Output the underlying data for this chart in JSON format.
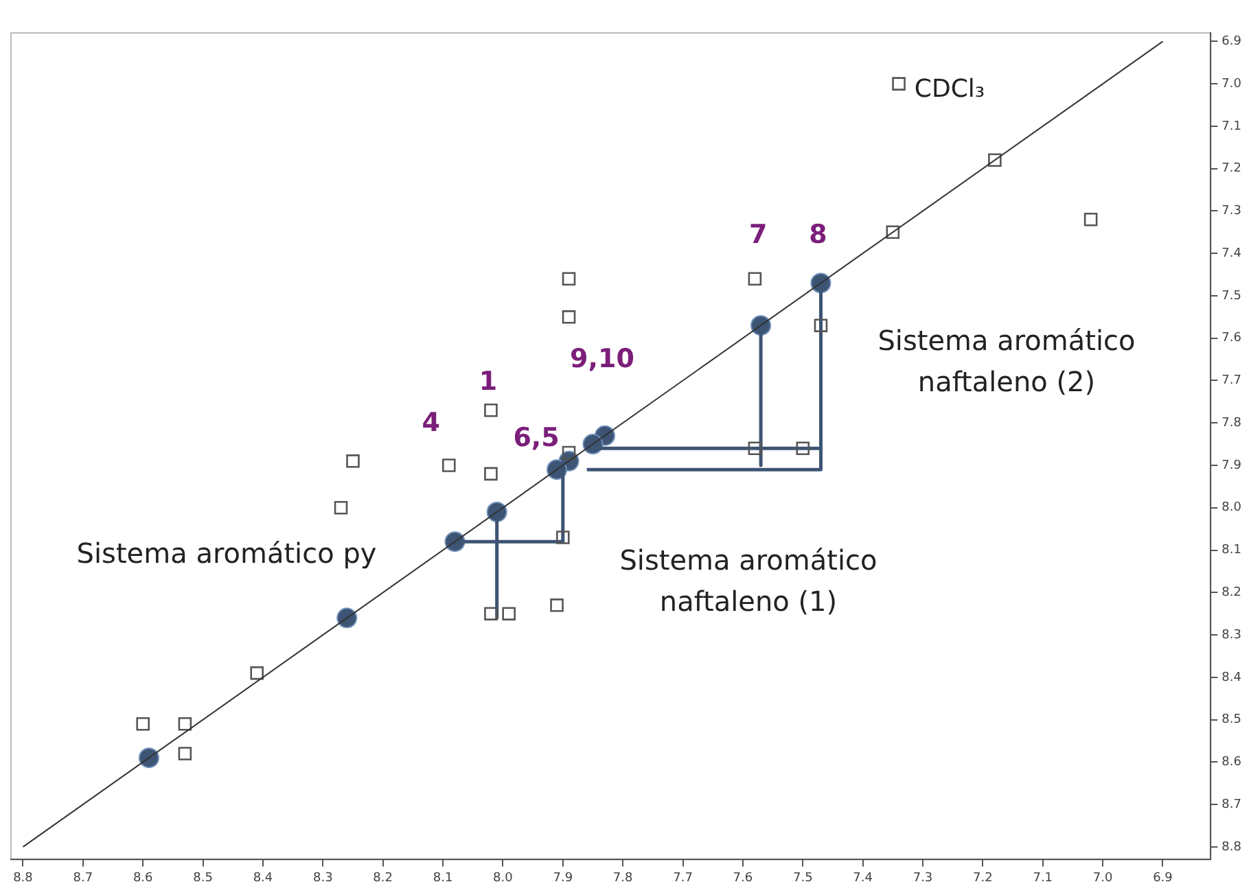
{
  "chart_data": {
    "type": "scatter",
    "xlim": [
      8.82,
      6.82
    ],
    "ylim": [
      8.83,
      6.88
    ],
    "xticks": [
      8.8,
      8.7,
      8.6,
      8.5,
      8.4,
      8.3,
      8.2,
      8.1,
      {
        "value": 8,
        "label": "8.0"
      },
      7.9,
      7.8,
      7.7,
      7.6,
      7.5,
      7.4,
      7.3,
      7.2,
      7.1,
      {
        "value": 7,
        "label": "7.0"
      },
      6.9
    ],
    "yticks": [
      6.9,
      {
        "value": 7,
        "label": "7.0"
      },
      7.1,
      7.2,
      7.3,
      7.4,
      7.5,
      7.6,
      7.7,
      7.8,
      7.9,
      {
        "value": 8,
        "label": "8.0"
      },
      8.1,
      8.2,
      8.3,
      8.4,
      8.5,
      8.6,
      8.7,
      8.8
    ],
    "grid": false,
    "legend": false,
    "series": [
      {
        "type": "line",
        "color": "#333333",
        "marker": "none",
        "x": [
          8.8,
          6.9
        ],
        "values": [
          8.8,
          6.9
        ]
      },
      {
        "type": "scatter",
        "color": "#555555",
        "marker": "square",
        "x": [
          7.34,
          7.18,
          7.35,
          7.02,
          7.58,
          7.47,
          7.89,
          7.89,
          7.58,
          7.5,
          7.89,
          8.09,
          8.02,
          8.02,
          8.25,
          8.27,
          7.9,
          8.02,
          7.99,
          7.91,
          8.41,
          8.6,
          8.53,
          8.53
        ],
        "values": [
          7.0,
          7.18,
          7.35,
          7.32,
          7.46,
          7.57,
          7.46,
          7.55,
          7.86,
          7.86,
          7.87,
          7.9,
          7.77,
          7.92,
          7.89,
          8.0,
          8.07,
          8.25,
          8.25,
          8.23,
          8.39,
          8.51,
          8.51,
          8.58
        ]
      },
      {
        "type": "line",
        "color": "#3d5474",
        "marker": "none",
        "x": [
          8.08,
          7.9,
          7.9
        ],
        "values": [
          8.08,
          8.08,
          7.89
        ]
      },
      {
        "type": "line",
        "color": "#3d5474",
        "marker": "none",
        "x": [
          8.01,
          8.01
        ],
        "values": [
          8.01,
          8.26
        ]
      },
      {
        "type": "line",
        "color": "#3d5474",
        "marker": "none",
        "x": [
          7.84,
          7.47
        ],
        "values": [
          7.86,
          7.86
        ]
      },
      {
        "type": "line",
        "color": "#3d5474",
        "marker": "none",
        "x": [
          7.86,
          7.47,
          7.47
        ],
        "values": [
          7.91,
          7.91,
          7.47
        ]
      },
      {
        "type": "line",
        "color": "#3d5474",
        "marker": "none",
        "x": [
          7.57,
          7.57
        ],
        "values": [
          7.57,
          7.9
        ]
      },
      {
        "type": "scatter",
        "color": "#3d5474",
        "marker": "circle",
        "x": [
          7.57,
          7.47,
          7.83,
          7.85,
          7.89,
          7.91,
          8.01,
          8.08,
          8.26,
          8.59
        ],
        "values": [
          7.57,
          7.47,
          7.83,
          7.85,
          7.89,
          7.91,
          8.01,
          8.08,
          8.26,
          8.59
        ]
      }
    ],
    "annotations": [
      {
        "text": "4",
        "x": 8.09,
        "y": 7.9
      },
      {
        "text": "1",
        "x": 8.02,
        "y": 7.77
      },
      {
        "text": "6,5",
        "x": 7.91,
        "y": 7.91
      },
      {
        "text": "9,10",
        "x": 7.83,
        "y": 7.83
      },
      {
        "text": "7",
        "x": 7.57,
        "y": 7.57
      },
      {
        "text": "8",
        "x": 7.47,
        "y": 7.47
      },
      {
        "text": "CDCl₃",
        "x": 7.34,
        "y": 7.0
      },
      "Sistema aromático py",
      "Sistema aromático\nnaftaleno (1)",
      "Sistema aromático\nnaftaleno (2)"
    ]
  }
}
